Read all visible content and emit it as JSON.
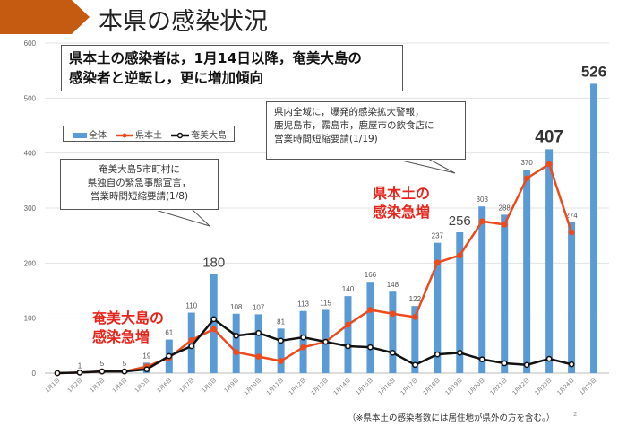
{
  "title": "本県の感染状況",
  "headline": [
    "県本土の感染者は，1月14日以降，奄美大島の",
    "感染者と逆転し，更に増加傾向"
  ],
  "callout_right": [
    "県内全域に，爆発的感染拡大警報，",
    "鹿児島市，霧島市，鹿屋市の飲食店に",
    "営業時間短縮要請(1/19)"
  ],
  "callout_left": [
    "奄美大島5市町村に",
    "県独自の緊急事態宣言，",
    "営業時間短縮要請(1/8)"
  ],
  "annotation_mainland": [
    "県本土の",
    "感染急増"
  ],
  "annotation_amami": [
    "奄美大島の",
    "感染急増"
  ],
  "footnote": "（※県本土の感染者数には居住地が県外の方を含む。）",
  "page_number": "2",
  "chart_data": {
    "type": "bar",
    "categories": [
      "1月1日",
      "1月2日",
      "1月3日",
      "1月4日",
      "1月5日",
      "1月6日",
      "1月7日",
      "1月8日",
      "1月9日",
      "1月10日",
      "1月11日",
      "1月12日",
      "1月13日",
      "1月14日",
      "1月15日",
      "1月16日",
      "1月17日",
      "1月18日",
      "1月19日",
      "1月20日",
      "1月21日",
      "1月22日",
      "1月23日",
      "1月24日",
      "1月25日"
    ],
    "ylim": [
      0,
      600
    ],
    "yticks": [
      "0",
      "100",
      "200",
      "300",
      "400",
      "500",
      "600"
    ],
    "grid": true,
    "legend_placement": "top-left",
    "series": [
      {
        "name": "全体",
        "type": "bar",
        "color": "#5b9bd5",
        "values": [
          0,
          1,
          5,
          5,
          19,
          61,
          110,
          180,
          108,
          107,
          81,
          113,
          115,
          140,
          166,
          148,
          122,
          237,
          256,
          303,
          288,
          370,
          407,
          274,
          526
        ],
        "labels": [
          null,
          "1",
          "5",
          "5",
          "19",
          "61",
          "110",
          "180",
          "108",
          "107",
          "81",
          "113",
          "115",
          "140",
          "166",
          "148",
          "122",
          "237",
          "256",
          "303",
          "288",
          "370",
          "407",
          "274",
          "526"
        ]
      },
      {
        "name": "県本土",
        "type": "line",
        "color": "#ed4b1c",
        "values": [
          0,
          1,
          3,
          3,
          12,
          28,
          60,
          80,
          38,
          30,
          22,
          47,
          57,
          88,
          115,
          108,
          102,
          201,
          214,
          276,
          270,
          354,
          380,
          256,
          null
        ]
      },
      {
        "name": "奄美大島",
        "type": "line",
        "color": "#111111",
        "values": [
          0,
          1,
          3,
          3,
          7,
          31,
          49,
          98,
          68,
          73,
          59,
          65,
          57,
          49,
          47,
          37,
          15,
          34,
          37,
          25,
          18,
          15,
          26,
          16,
          null
        ]
      }
    ]
  }
}
